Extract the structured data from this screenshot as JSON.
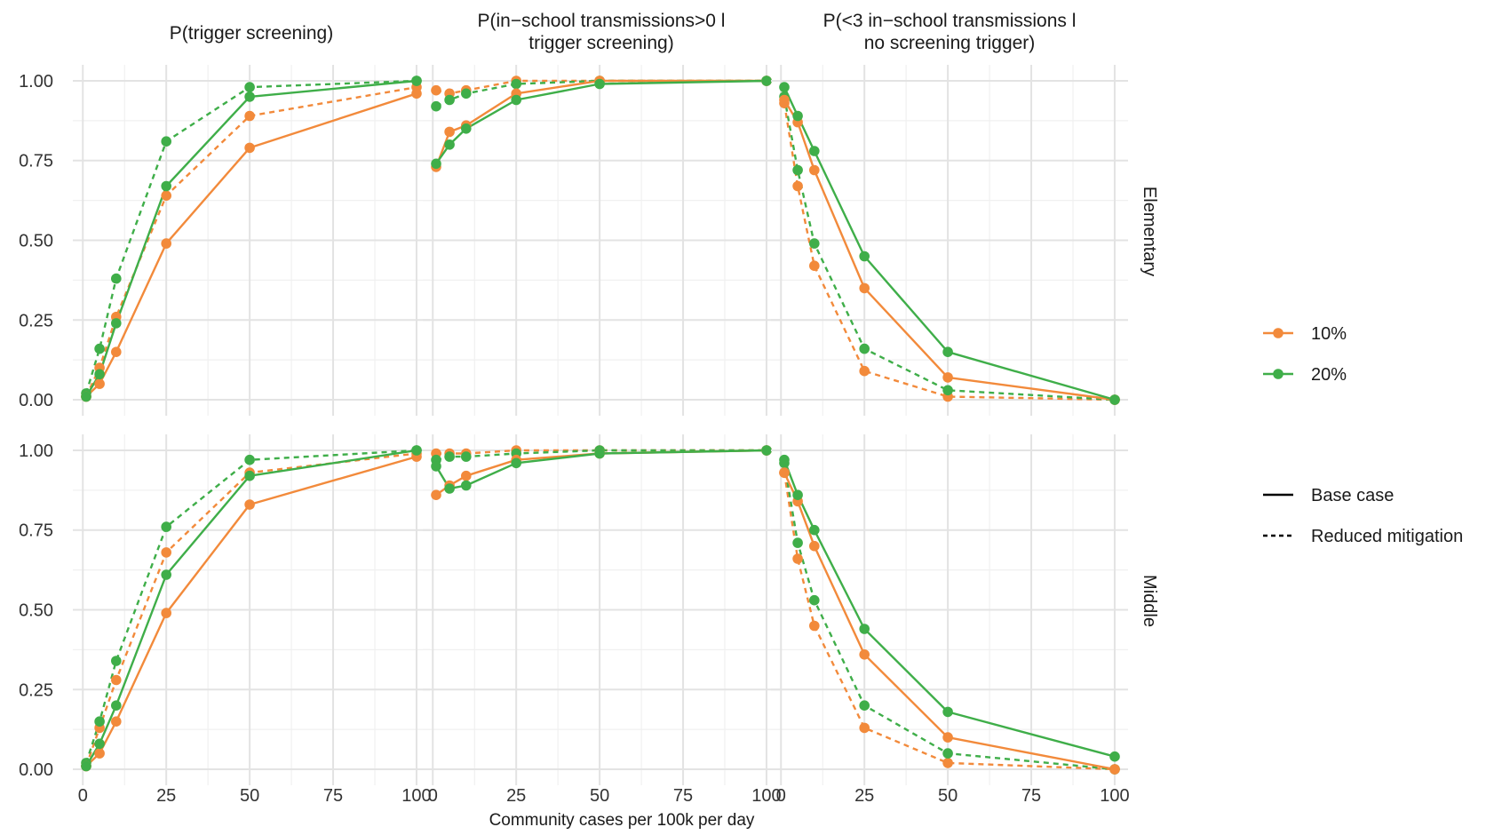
{
  "chart_data": {
    "type": "line",
    "xlabel": "Community cases per 100k per day",
    "ylabel": "",
    "x": [
      1,
      5,
      10,
      25,
      50,
      100
    ],
    "xticks": [
      "0",
      "25",
      "50",
      "75",
      "100"
    ],
    "yticks": [
      "0.00",
      "0.25",
      "0.50",
      "0.75",
      "1.00"
    ],
    "xlim": [
      -3,
      104
    ],
    "ylim": [
      -0.05,
      1.05
    ],
    "grid": true,
    "legend_position": "right",
    "facet_columns": [
      "P(trigger screening)",
      "P(in−school transmissions>0 l trigger screening)",
      "P(<3 in−school transmissions l no screening trigger)"
    ],
    "facet_columns_lines": [
      [
        "P(trigger screening)"
      ],
      [
        "P(in−school transmissions>0 l",
        "trigger screening)"
      ],
      [
        "P(<3 in−school transmissions l",
        "no screening trigger)"
      ]
    ],
    "facet_rows": [
      "Elementary",
      "Middle"
    ],
    "color_legend": [
      {
        "label": "10%",
        "color": "#F28A3B"
      },
      {
        "label": "20%",
        "color": "#3FAE49"
      }
    ],
    "linetype_legend": [
      {
        "label": "Base case",
        "dash": "solid"
      },
      {
        "label": "Reduced mitigation",
        "dash": "dashed"
      }
    ],
    "panels": [
      {
        "row": "Elementary",
        "col": "P(trigger screening)",
        "series": [
          {
            "color": "10%",
            "linetype": "Base case",
            "values": [
              0.01,
              0.05,
              0.15,
              0.49,
              0.79,
              0.96
            ]
          },
          {
            "color": "10%",
            "linetype": "Reduced mitigation",
            "values": [
              0.01,
              0.1,
              0.26,
              0.64,
              0.89,
              0.98
            ]
          },
          {
            "color": "20%",
            "linetype": "Base case",
            "values": [
              0.01,
              0.08,
              0.24,
              0.67,
              0.95,
              1.0
            ]
          },
          {
            "color": "20%",
            "linetype": "Reduced mitigation",
            "values": [
              0.02,
              0.16,
              0.38,
              0.81,
              0.98,
              1.0
            ]
          }
        ]
      },
      {
        "row": "Elementary",
        "col": "P(in−school transmissions>0 l trigger screening)",
        "series": [
          {
            "color": "10%",
            "linetype": "Base case",
            "values": [
              0.73,
              0.84,
              0.86,
              0.96,
              1.0,
              1.0
            ]
          },
          {
            "color": "10%",
            "linetype": "Reduced mitigation",
            "values": [
              0.97,
              0.96,
              0.97,
              1.0,
              1.0,
              1.0
            ]
          },
          {
            "color": "20%",
            "linetype": "Base case",
            "values": [
              0.74,
              0.8,
              0.85,
              0.94,
              0.99,
              1.0
            ]
          },
          {
            "color": "20%",
            "linetype": "Reduced mitigation",
            "values": [
              0.92,
              0.94,
              0.96,
              0.99,
              1.0,
              1.0
            ]
          }
        ]
      },
      {
        "row": "Elementary",
        "col": "P(<3 in−school transmissions l no screening trigger)",
        "series": [
          {
            "color": "10%",
            "linetype": "Base case",
            "values": [
              0.94,
              0.87,
              0.72,
              0.35,
              0.07,
              0.0
            ]
          },
          {
            "color": "10%",
            "linetype": "Reduced mitigation",
            "values": [
              0.93,
              0.67,
              0.42,
              0.09,
              0.01,
              0.0
            ]
          },
          {
            "color": "20%",
            "linetype": "Base case",
            "values": [
              0.98,
              0.89,
              0.78,
              0.45,
              0.15,
              0.0
            ]
          },
          {
            "color": "20%",
            "linetype": "Reduced mitigation",
            "values": [
              0.95,
              0.72,
              0.49,
              0.16,
              0.03,
              0.0
            ]
          }
        ]
      },
      {
        "row": "Middle",
        "col": "P(trigger screening)",
        "series": [
          {
            "color": "10%",
            "linetype": "Base case",
            "values": [
              0.01,
              0.05,
              0.15,
              0.49,
              0.83,
              0.98
            ]
          },
          {
            "color": "10%",
            "linetype": "Reduced mitigation",
            "values": [
              0.01,
              0.13,
              0.28,
              0.68,
              0.93,
              0.99
            ]
          },
          {
            "color": "20%",
            "linetype": "Base case",
            "values": [
              0.01,
              0.08,
              0.2,
              0.61,
              0.92,
              1.0
            ]
          },
          {
            "color": "20%",
            "linetype": "Reduced mitigation",
            "values": [
              0.02,
              0.15,
              0.34,
              0.76,
              0.97,
              1.0
            ]
          }
        ]
      },
      {
        "row": "Middle",
        "col": "P(in−school transmissions>0 l trigger screening)",
        "series": [
          {
            "color": "10%",
            "linetype": "Base case",
            "values": [
              0.86,
              0.89,
              0.92,
              0.97,
              0.99,
              1.0
            ]
          },
          {
            "color": "10%",
            "linetype": "Reduced mitigation",
            "values": [
              0.99,
              0.99,
              0.99,
              1.0,
              1.0,
              1.0
            ]
          },
          {
            "color": "20%",
            "linetype": "Base case",
            "values": [
              0.95,
              0.88,
              0.89,
              0.96,
              0.99,
              1.0
            ]
          },
          {
            "color": "20%",
            "linetype": "Reduced mitigation",
            "values": [
              0.97,
              0.98,
              0.98,
              0.99,
              1.0,
              1.0
            ]
          }
        ]
      },
      {
        "row": "Middle",
        "col": "P(<3 in−school transmissions l no screening trigger)",
        "series": [
          {
            "color": "10%",
            "linetype": "Base case",
            "values": [
              0.93,
              0.84,
              0.7,
              0.36,
              0.1,
              0.0
            ]
          },
          {
            "color": "10%",
            "linetype": "Reduced mitigation",
            "values": [
              0.93,
              0.66,
              0.45,
              0.13,
              0.02,
              0.0
            ]
          },
          {
            "color": "20%",
            "linetype": "Base case",
            "values": [
              0.97,
              0.86,
              0.75,
              0.44,
              0.18,
              0.04
            ]
          },
          {
            "color": "20%",
            "linetype": "Reduced mitigation",
            "values": [
              0.96,
              0.71,
              0.53,
              0.2,
              0.05,
              0.0
            ]
          }
        ]
      }
    ]
  }
}
